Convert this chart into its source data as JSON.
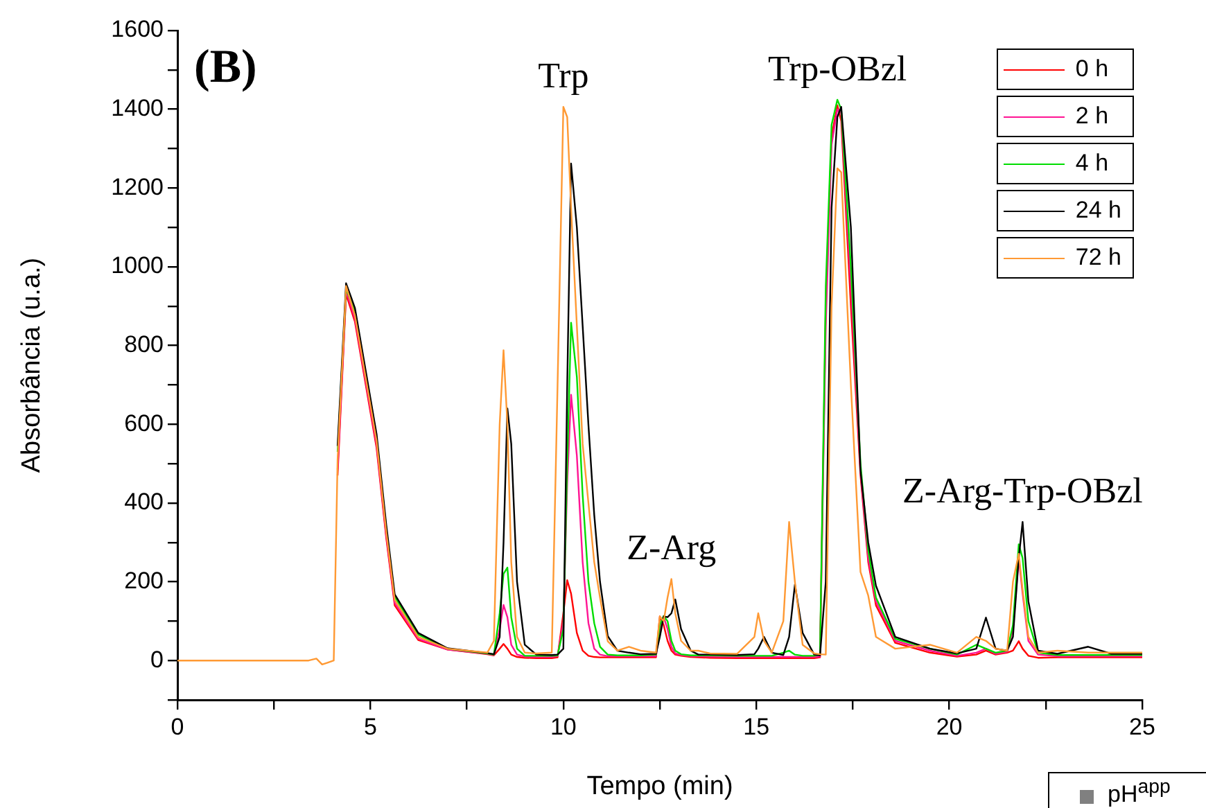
{
  "chart_data": {
    "type": "line",
    "xlabel": "Tempo (min)",
    "ylabel": "Absorbância (u.a.)",
    "xlim": [
      0,
      25
    ],
    "xticks": [
      0,
      {
        "value": 2.5,
        "label": null
      },
      5,
      {
        "value": 7.5,
        "label": null
      },
      10,
      {
        "value": 12.5,
        "label": null
      },
      15,
      {
        "value": 17.5,
        "label": null
      },
      20,
      {
        "value": 22.5,
        "label": null
      },
      25
    ],
    "ylim": [
      -100,
      1600
    ],
    "yticks": [
      {
        "value": -100,
        "label": null
      },
      0,
      {
        "value": 100,
        "label": null
      },
      200,
      {
        "value": 300,
        "label": null
      },
      400,
      {
        "value": 500,
        "label": null
      },
      600,
      {
        "value": 700,
        "label": null
      },
      800,
      {
        "value": 900,
        "label": null
      },
      1000,
      {
        "value": 1100,
        "label": null
      },
      1200,
      {
        "value": 1300,
        "label": null
      },
      1400,
      {
        "value": 1500,
        "label": null
      },
      1600
    ],
    "grid": false,
    "legend": "top right",
    "marker": "none",
    "line_style": "solid",
    "x": [
      0,
      3.4,
      3.6,
      3.75,
      3.9,
      4.05,
      4.15,
      4.37,
      4.6,
      5.16,
      5.41,
      5.63,
      6.24,
      7,
      8.03,
      8.2,
      8.35,
      8.45,
      8.55,
      8.65,
      8.8,
      9.0,
      9.3,
      9.7,
      9.85,
      10.0,
      10.1,
      10.2,
      10.35,
      10.5,
      10.65,
      10.8,
      10.95,
      11.15,
      11.4,
      11.7,
      12.0,
      12.4,
      12.5,
      12.6,
      12.7,
      12.8,
      12.9,
      13.05,
      13.3,
      13.5,
      13.8,
      14.5,
      14.95,
      15.05,
      15.2,
      15.4,
      15.7,
      15.85,
      16.0,
      16.2,
      16.5,
      16.65,
      16.8,
      16.95,
      17.1,
      17.2,
      17.45,
      17.7,
      17.9,
      18.1,
      18.6,
      19.5,
      20.2,
      20.7,
      20.95,
      21.2,
      21.5,
      21.65,
      21.8,
      21.9,
      22.05,
      22.3,
      22.8,
      23.6,
      24.2,
      25
    ],
    "series": [
      {
        "name": "0 h",
        "color": "#ff0000",
        "values": [
          null,
          null,
          null,
          null,
          null,
          null,
          470,
          930,
          860,
          540,
          312,
          140,
          52,
          28,
          16,
          13,
          30,
          42,
          30,
          15,
          9,
          7,
          6,
          6,
          8,
          120,
          204,
          170,
          70,
          25,
          12,
          9,
          8,
          8,
          8,
          8,
          8,
          8,
          112,
          90,
          50,
          25,
          15,
          12,
          9,
          8,
          7,
          6,
          6,
          6,
          6,
          6,
          6,
          6,
          6,
          6,
          6,
          8,
          900,
          1330,
          1410,
          1370,
          900,
          470,
          250,
          140,
          45,
          20,
          10,
          15,
          25,
          15,
          20,
          25,
          49,
          30,
          12,
          7,
          8,
          8,
          8,
          8
        ]
      },
      {
        "name": "2 h",
        "color": "#ff1493",
        "values": [
          null,
          null,
          null,
          null,
          null,
          null,
          485,
          938,
          868,
          548,
          318,
          146,
          55,
          28,
          17,
          14,
          80,
          141,
          110,
          40,
          15,
          10,
          9,
          9,
          11,
          100,
          450,
          675,
          520,
          250,
          95,
          30,
          15,
          11,
          11,
          11,
          11,
          11,
          80,
          110,
          80,
          35,
          18,
          14,
          11,
          11,
          10,
          9,
          9,
          9,
          9,
          9,
          9,
          9,
          9,
          9,
          9,
          10,
          850,
          1310,
          1400,
          1390,
          950,
          480,
          260,
          150,
          50,
          25,
          12,
          20,
          30,
          17,
          22,
          80,
          260,
          170,
          50,
          15,
          11,
          11,
          11,
          11
        ]
      },
      {
        "name": "4 h",
        "color": "#00dd00",
        "values": [
          null,
          null,
          null,
          null,
          null,
          null,
          530,
          944,
          885,
          566,
          337,
          162,
          66,
          30,
          18,
          15,
          120,
          220,
          236,
          110,
          30,
          12,
          12,
          12,
          13,
          80,
          500,
          858,
          720,
          420,
          200,
          95,
          35,
          15,
          13,
          13,
          13,
          15,
          90,
          113,
          100,
          50,
          25,
          16,
          13,
          13,
          13,
          12,
          12,
          12,
          12,
          12,
          20,
          25,
          15,
          12,
          12,
          15,
          950,
          1360,
          1424,
          1400,
          1000,
          500,
          280,
          160,
          55,
          30,
          15,
          40,
          30,
          20,
          25,
          90,
          295,
          260,
          100,
          20,
          14,
          14,
          14,
          14
        ]
      },
      {
        "name": "24 h",
        "color": "#000000",
        "values": [
          null,
          null,
          null,
          null,
          null,
          null,
          545,
          958,
          895,
          575,
          345,
          168,
          70,
          31,
          19,
          16,
          60,
          300,
          640,
          550,
          200,
          40,
          15,
          14,
          15,
          30,
          700,
          1262,
          1100,
          850,
          598,
          370,
          200,
          62,
          25,
          20,
          16,
          17,
          60,
          112,
          110,
          120,
          155,
          80,
          25,
          15,
          15,
          14,
          16,
          30,
          60,
          20,
          14,
          60,
          193,
          70,
          15,
          13,
          200,
          1150,
          1380,
          1406,
          1100,
          482,
          300,
          190,
          60,
          30,
          18,
          30,
          109,
          30,
          25,
          60,
          260,
          352,
          150,
          25,
          17,
          35,
          17,
          17
        ]
      },
      {
        "name": "72 h",
        "color": "#ff9933",
        "values": [
          0,
          0,
          5,
          -10,
          -5,
          0,
          510,
          951,
          876,
          558,
          327,
          154,
          60,
          30,
          20,
          50,
          600,
          788,
          600,
          250,
          60,
          20,
          18,
          20,
          700,
          1406,
          1380,
          1150,
          850,
          550,
          400,
          250,
          160,
          49,
          25,
          35,
          25,
          20,
          112,
          100,
          160,
          207,
          120,
          50,
          25,
          25,
          18,
          17,
          60,
          120,
          50,
          20,
          100,
          352,
          200,
          40,
          18,
          16,
          15,
          900,
          1250,
          1240,
          700,
          225,
          165,
          60,
          30,
          40,
          20,
          60,
          50,
          30,
          25,
          200,
          271,
          180,
          60,
          20,
          25,
          20,
          20,
          20
        ]
      }
    ],
    "annotations": [
      "(B)",
      "pH$^{app}$",
      {
        "text": "Trp",
        "x": 10.0,
        "y": 1406
      },
      {
        "text": "Trp-OBzl",
        "x": 17.1,
        "y": 1424
      },
      {
        "text": "Z-Arg",
        "x": 12.8,
        "y": 207
      },
      {
        "text": "Z-Arg-Trp-OBzl",
        "x": 21.9,
        "y": 352
      }
    ]
  }
}
